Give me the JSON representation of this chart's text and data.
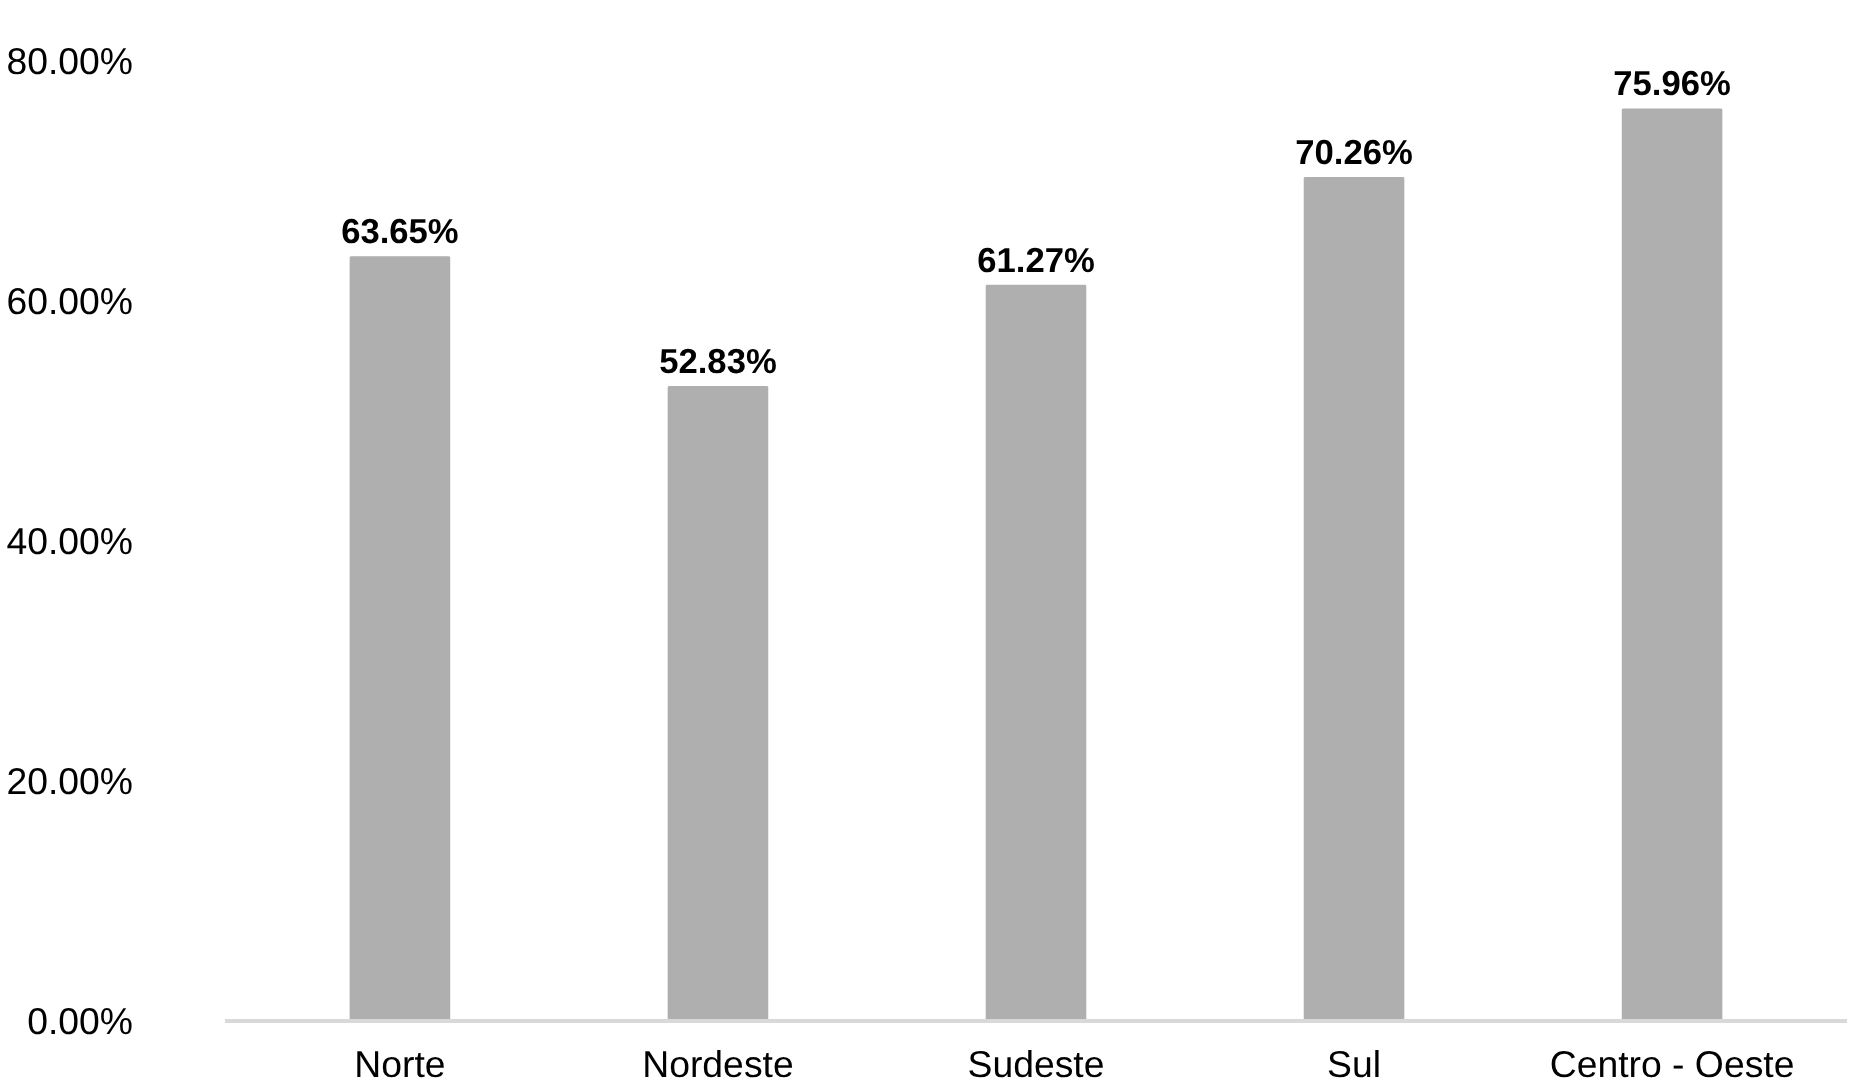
{
  "chart_data": {
    "type": "bar",
    "categories": [
      "Norte",
      "Nordeste",
      "Sudeste",
      "Sul",
      "Centro - Oeste"
    ],
    "values": [
      63.65,
      52.83,
      61.27,
      70.26,
      75.96
    ],
    "color": "#afafaf",
    "value_labels": [
      "63.65%",
      "52.83%",
      "61.27%",
      "70.26%",
      "75.96%"
    ],
    "ylim": [
      0,
      80
    ],
    "yticks": [
      {
        "value": 0,
        "label": "0.00%"
      },
      {
        "value": 20,
        "label": "20.00%"
      },
      {
        "value": 40,
        "label": "40.00%"
      },
      {
        "value": 60,
        "label": "60.00%"
      },
      {
        "value": 80,
        "label": "80.00%"
      }
    ],
    "grid": false
  }
}
